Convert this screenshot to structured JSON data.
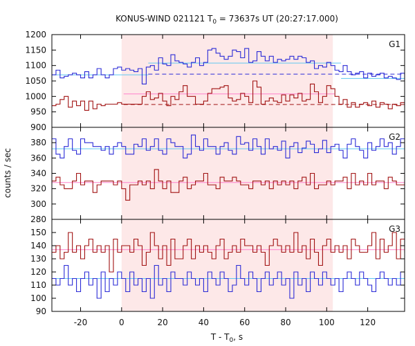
{
  "chart_data": {
    "type": "line",
    "title_main": "KONUS-WIND 021121 T",
    "title_sub": "0",
    "title_rest": " = 73637s UT (20:27:17.000)",
    "xlabel_main": "T - T",
    "xlabel_sub": "0",
    "xlabel_rest": ", s",
    "ylabel": "counts / sec",
    "xlim": [
      -34,
      138
    ],
    "xticks": [
      -20,
      0,
      20,
      40,
      60,
      80,
      100,
      120
    ],
    "shade_range": [
      0,
      103
    ],
    "colors": {
      "blue": "#2a2ad6",
      "red": "#a01010",
      "cyan": "#5fc8f0",
      "pink": "#ff80cc",
      "shade": "#fde8e8"
    },
    "panels": [
      {
        "label": "G1",
        "ylim": [
          900,
          1200
        ],
        "yticks": [
          900,
          950,
          1000,
          1050,
          1100,
          1150,
          1200
        ],
        "fits": [
          {
            "color": "cyan",
            "dashed": false,
            "segments": [
              [
                -34,
                1070,
                13
              ],
              [
                13,
                1108,
                107
              ],
              [
                107,
                1058,
                138
              ]
            ]
          },
          {
            "color": "blue",
            "dashed": true,
            "segments": [
              [
                13,
                1072,
                138
              ]
            ]
          },
          {
            "color": "pink",
            "dashed": false,
            "segments": [
              [
                1,
                1008,
                104
              ]
            ]
          },
          {
            "color": "red",
            "dashed": true,
            "segments": [
              [
                1,
                974,
                138
              ]
            ]
          }
        ],
        "series": [
          {
            "color": "blue",
            "x0": -34,
            "dx": 2,
            "values": [
              1070,
              1085,
              1060,
              1065,
              1070,
              1075,
              1070,
              1060,
              1080,
              1060,
              1070,
              1090,
              1070,
              1060,
              1070,
              1090,
              1095,
              1085,
              1090,
              1085,
              1080,
              1090,
              1040,
              1095,
              1100,
              1085,
              1125,
              1105,
              1100,
              1135,
              1115,
              1110,
              1105,
              1095,
              1110,
              1125,
              1100,
              1110,
              1150,
              1155,
              1140,
              1130,
              1120,
              1130,
              1150,
              1145,
              1125,
              1155,
              1110,
              1115,
              1145,
              1130,
              1115,
              1130,
              1110,
              1120,
              1115,
              1120,
              1130,
              1120,
              1130,
              1125,
              1110,
              1115,
              1090,
              1100,
              1095,
              1110,
              1100,
              1085,
              1080,
              1100,
              1080,
              1070,
              1075,
              1080,
              1060,
              1075,
              1065,
              1070,
              1075,
              1060,
              1065,
              1060,
              1055,
              1075,
              1050
            ]
          },
          {
            "color": "red",
            "x0": -34,
            "dx": 2,
            "values": [
              970,
              975,
              990,
              1000,
              965,
              985,
              970,
              985,
              955,
              985,
              960,
              975,
              970,
              975,
              975,
              975,
              980,
              975,
              975,
              975,
              975,
              975,
              1000,
              1015,
              990,
              995,
              1010,
              985,
              970,
              1000,
              990,
              1015,
              1035,
              1000,
              1000,
              975,
              975,
              985,
              1010,
              1025,
              1025,
              1030,
              1035,
              995,
              985,
              990,
              1010,
              1000,
              980,
              1050,
              1030,
              975,
              985,
              995,
              985,
              980,
              1005,
              985,
              1005,
              995,
              1010,
              985,
              990,
              1040,
              1015,
              980,
              1000,
              1035,
              1025,
              1000,
              975,
              990,
              965,
              980,
              965,
              975,
              980,
              970,
              985,
              965,
              980,
              975,
              960,
              975,
              970,
              980,
              965
            ]
          }
        ]
      },
      {
        "label": "G2",
        "ylim": [
          280,
          400
        ],
        "yticks": [
          280,
          300,
          320,
          340,
          360,
          380,
          400
        ],
        "fits": [
          {
            "color": "cyan",
            "dashed": false,
            "segments": [
              [
                -34,
                372,
                138
              ]
            ]
          },
          {
            "color": "pink",
            "dashed": false,
            "segments": [
              [
                -34,
                328,
                138
              ]
            ]
          }
        ],
        "series": [
          {
            "color": "blue",
            "x0": -34,
            "dx": 2,
            "values": [
              385,
              365,
              360,
              375,
              385,
              370,
              365,
              385,
              380,
              380,
              375,
              375,
              370,
              375,
              365,
              375,
              380,
              375,
              365,
              365,
              378,
              375,
              385,
              370,
              375,
              385,
              370,
              365,
              385,
              380,
              375,
              375,
              360,
              365,
              390,
              375,
              370,
              385,
              375,
              375,
              365,
              375,
              380,
              370,
              365,
              388,
              378,
              380,
              370,
              385,
              375,
              365,
              385,
              372,
              375,
              370,
              382,
              360,
              375,
              380,
              367,
              373,
              382,
              378,
              367,
              372,
              383,
              367,
              375,
              378,
              370,
              360,
              378,
              385,
              375,
              370,
              360,
              380,
              370,
              375,
              385,
              375,
              380,
              365,
              375,
              385,
              370
            ]
          },
          {
            "color": "red",
            "x0": -34,
            "dx": 2,
            "values": [
              330,
              335,
              325,
              320,
              320,
              330,
              340,
              325,
              330,
              330,
              315,
              325,
              330,
              330,
              330,
              325,
              330,
              320,
              305,
              325,
              325,
              330,
              325,
              330,
              320,
              345,
              330,
              320,
              330,
              315,
              315,
              330,
              335,
              320,
              325,
              330,
              330,
              340,
              325,
              325,
              320,
              335,
              330,
              330,
              335,
              330,
              325,
              325,
              320,
              330,
              330,
              325,
              330,
              320,
              330,
              325,
              330,
              325,
              330,
              320,
              330,
              335,
              325,
              340,
              320,
              325,
              325,
              330,
              325,
              330,
              330,
              335,
              320,
              340,
              325,
              330,
              325,
              340,
              325,
              330,
              330,
              320,
              335,
              330,
              325,
              325,
              330
            ]
          }
        ]
      },
      {
        "label": "G3",
        "ylim": [
          90,
          160
        ],
        "yticks": [
          90,
          100,
          110,
          120,
          130,
          140,
          150
        ],
        "fits": [
          {
            "color": "pink",
            "dashed": false,
            "segments": [
              [
                -34,
                137,
                138
              ]
            ]
          },
          {
            "color": "cyan",
            "dashed": false,
            "segments": [
              [
                -34,
                115,
                138
              ]
            ]
          }
        ],
        "series": [
          {
            "color": "red",
            "x0": -34,
            "dx": 2,
            "values": [
              135,
              140,
              130,
              135,
              150,
              135,
              140,
              130,
              140,
              145,
              135,
              140,
              135,
              140,
              120,
              145,
              135,
              140,
              140,
              135,
              145,
              140,
              125,
              135,
              150,
              140,
              130,
              140,
              125,
              145,
              130,
              130,
              140,
              145,
              130,
              140,
              135,
              140,
              135,
              130,
              140,
              145,
              130,
              135,
              140,
              135,
              145,
              140,
              140,
              135,
              140,
              135,
              125,
              140,
              145,
              140,
              135,
              140,
              135,
              150,
              135,
              140,
              130,
              145,
              135,
              125,
              140,
              145,
              135,
              140,
              135,
              140,
              130,
              145,
              140,
              135,
              135,
              140,
              150,
              130,
              145,
              135,
              140,
              150,
              130,
              145,
              135
            ]
          },
          {
            "color": "blue",
            "x0": -34,
            "dx": 2,
            "values": [
              115,
              110,
              115,
              125,
              110,
              115,
              105,
              115,
              120,
              110,
              115,
              100,
              120,
              105,
              115,
              110,
              120,
              115,
              105,
              120,
              110,
              115,
              105,
              115,
              100,
              125,
              110,
              115,
              105,
              120,
              115,
              115,
              110,
              120,
              115,
              110,
              115,
              105,
              120,
              115,
              110,
              120,
              115,
              105,
              110,
              125,
              115,
              110,
              120,
              115,
              105,
              115,
              120,
              110,
              115,
              120,
              110,
              115,
              100,
              120,
              110,
              115,
              105,
              120,
              115,
              110,
              120,
              115,
              110,
              115,
              105,
              115,
              120,
              115,
              110,
              120,
              115,
              110,
              105,
              115,
              120,
              115,
              110,
              115,
              110,
              120,
              115
            ]
          }
        ]
      }
    ]
  }
}
